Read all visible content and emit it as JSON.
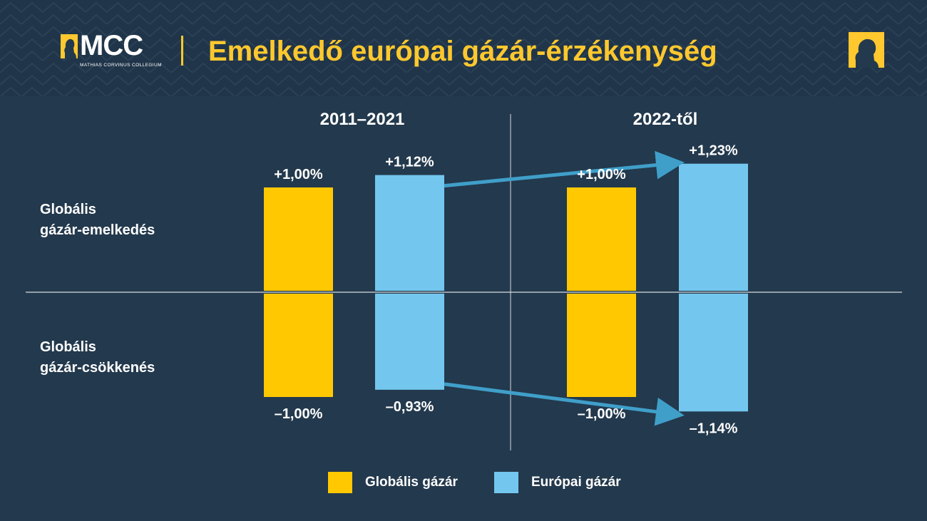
{
  "header": {
    "logo_text": "MCC",
    "logo_subtitle": "MATHIAS CORVINUS COLLEGIUM",
    "title": "Emelkedő európai gázár-érzékenység"
  },
  "colors": {
    "background": "#23394d",
    "global": "#ffc800",
    "european": "#73c7ef",
    "arrow": "#3f9fc9",
    "accent": "#ffc82e"
  },
  "icons": {
    "logo": "mcc-bust-icon",
    "corner": "bust-silhouette-icon"
  },
  "chart_data": {
    "type": "bar",
    "title": "Emelkedő európai gázár-érzékenység",
    "periods": [
      "2011–2021",
      "2022-től"
    ],
    "row_labels": [
      "Globális gázár-emelkedés",
      "Globális gázár-csökkenés"
    ],
    "series": [
      {
        "name": "Globális gázár",
        "up": [
          1.0,
          1.0
        ],
        "down": [
          -1.0,
          -1.0
        ],
        "up_labels": [
          "+1,00%",
          "+1,00%"
        ],
        "down_labels": [
          "–1,00%",
          "–1,00%"
        ]
      },
      {
        "name": "Európai gázár",
        "up": [
          1.12,
          1.23
        ],
        "down": [
          -0.93,
          -1.14
        ],
        "up_labels": [
          "+1,12%",
          "+1,23%"
        ],
        "down_labels": [
          "–0,93%",
          "–1,14%"
        ]
      }
    ],
    "ylim": [
      -1.23,
      1.23
    ],
    "legend_position": "bottom"
  }
}
